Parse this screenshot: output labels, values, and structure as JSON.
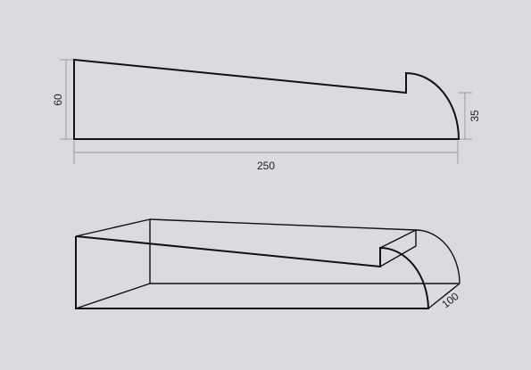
{
  "drawing": {
    "dimensions": {
      "height_left": "60",
      "height_right": "35",
      "length": "250",
      "width": "100"
    }
  }
}
